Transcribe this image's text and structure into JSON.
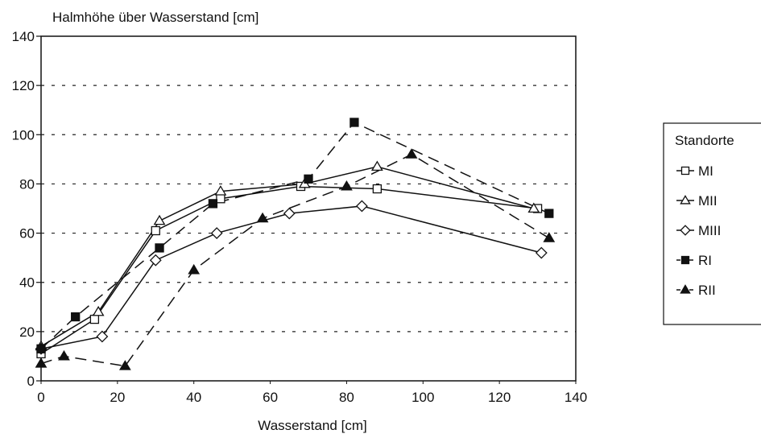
{
  "chart_data": {
    "type": "line",
    "ylabel": "Halmhöhe über Wasserstand [cm]",
    "xlabel": "Wasserstand [cm]",
    "xlim": [
      0,
      140
    ],
    "ylim": [
      0,
      140
    ],
    "xticks": [
      0,
      20,
      40,
      60,
      80,
      100,
      120,
      140
    ],
    "yticks": [
      0,
      20,
      40,
      60,
      80,
      100,
      120,
      140
    ],
    "grid": "horizontal dotted",
    "legend": {
      "title": "Standorte",
      "position": "right"
    },
    "series": [
      {
        "name": "MI",
        "marker": "square-open",
        "line": "solid",
        "points": [
          [
            0,
            11
          ],
          [
            14,
            25
          ],
          [
            30,
            61
          ],
          [
            47,
            74
          ],
          [
            68,
            79
          ],
          [
            88,
            78
          ],
          [
            130,
            70
          ]
        ]
      },
      {
        "name": "MII",
        "marker": "triangle-open",
        "line": "solid",
        "points": [
          [
            0,
            14
          ],
          [
            15,
            28
          ],
          [
            31,
            65
          ],
          [
            47,
            77
          ],
          [
            69,
            80
          ],
          [
            88,
            87
          ],
          [
            129,
            70
          ]
        ]
      },
      {
        "name": "MIII",
        "marker": "diamond-open",
        "line": "solid",
        "points": [
          [
            0,
            13
          ],
          [
            16,
            18
          ],
          [
            30,
            49
          ],
          [
            46,
            60
          ],
          [
            65,
            68
          ],
          [
            84,
            71
          ],
          [
            131,
            52
          ]
        ]
      },
      {
        "name": "RI",
        "marker": "square-filled",
        "line": "dashed",
        "points": [
          [
            0,
            13
          ],
          [
            9,
            26
          ],
          [
            31,
            54
          ],
          [
            45,
            72
          ],
          [
            70,
            82
          ],
          [
            82,
            105
          ],
          [
            133,
            68
          ]
        ]
      },
      {
        "name": "RII",
        "marker": "triangle-filled",
        "line": "dashed",
        "points": [
          [
            0,
            7
          ],
          [
            6,
            10
          ],
          [
            22,
            6
          ],
          [
            40,
            45
          ],
          [
            58,
            66
          ],
          [
            80,
            79
          ],
          [
            97,
            92
          ],
          [
            133,
            58
          ]
        ]
      }
    ]
  }
}
